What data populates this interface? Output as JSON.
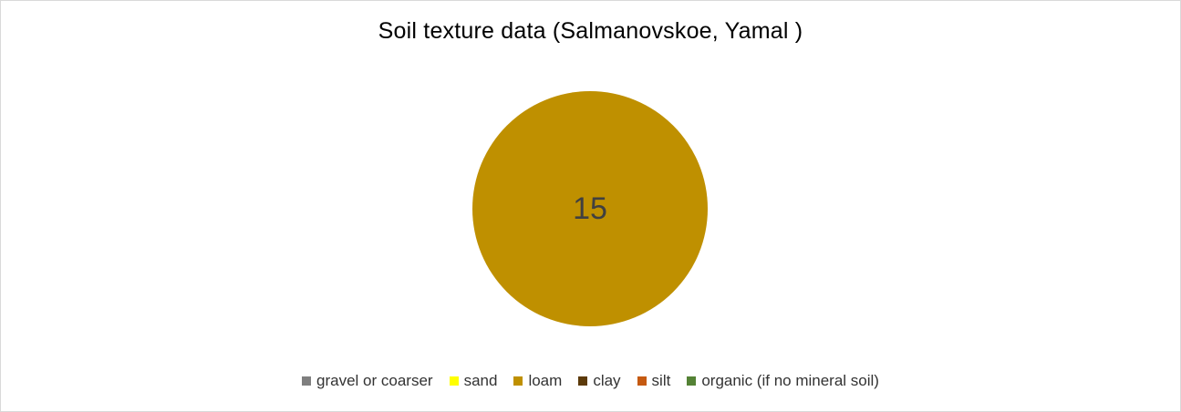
{
  "chart_data": {
    "type": "pie",
    "title": "Soil texture data (Salmanovskoe, Yamal )",
    "categories": [
      "gravel or coarser",
      "sand",
      "loam",
      "clay",
      "silt",
      "organic (if no mineral soil)"
    ],
    "values": [
      0,
      0,
      15,
      0,
      0,
      0
    ],
    "colors": [
      "#7f7f7f",
      "#ffff00",
      "#bf9000",
      "#5c3a0a",
      "#c55a11",
      "#548235"
    ],
    "data_labels": [
      "",
      "",
      "15",
      "",
      "",
      ""
    ],
    "legend_position": "bottom"
  }
}
